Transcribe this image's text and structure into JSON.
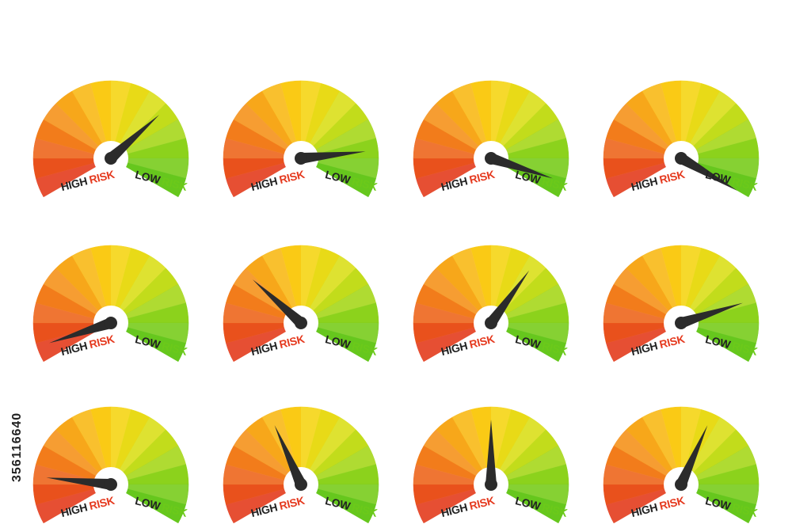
{
  "labels": {
    "high_word": "HIGH",
    "risk_word": "RISK",
    "low_word": "LOW"
  },
  "colors": {
    "high": "#e53a1f",
    "low": "#6cc91a",
    "text": "#222222",
    "needle": "#2b2b2b"
  },
  "gauges": [
    {
      "risk_level": 0.3
    },
    {
      "risk_level": 0.15
    },
    {
      "risk_level": 0.05
    },
    {
      "risk_level": 0.0
    },
    {
      "risk_level": 0.95
    },
    {
      "risk_level": 0.7
    },
    {
      "risk_level": 0.35
    },
    {
      "risk_level": 0.2
    },
    {
      "risk_level": 0.85
    },
    {
      "risk_level": 0.6
    },
    {
      "risk_level": 0.5
    },
    {
      "risk_level": 0.4
    }
  ],
  "side_text": "356116640"
}
